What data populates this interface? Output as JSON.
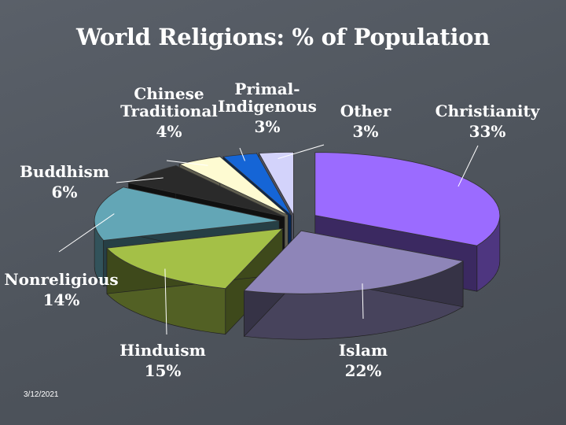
{
  "slide": {
    "title": "World Religions: % of Population",
    "footer_date": "3/12/2021"
  },
  "chart_data": {
    "type": "pie",
    "title": "World Religions: % of Population",
    "style": "3d-exploded",
    "unit": "%",
    "slices": [
      {
        "label": "Christianity",
        "value": 33,
        "value_label": "33%",
        "color": "#9b6bff"
      },
      {
        "label": "Islam",
        "value": 22,
        "value_label": "22%",
        "color": "#8e85b8"
      },
      {
        "label": "Hinduism",
        "value": 15,
        "value_label": "15%",
        "color": "#a4c047"
      },
      {
        "label": "Nonreligious",
        "value": 14,
        "value_label": "14%",
        "color": "#63a6b6"
      },
      {
        "label": "Buddhism",
        "value": 6,
        "value_label": "6%",
        "color": "#2a2a2a"
      },
      {
        "label": "Chinese Traditional",
        "value": 4,
        "value_label": "4%",
        "color": "#fefbd2"
      },
      {
        "label": "Primal-Indigenous",
        "value": 3,
        "value_label": "3%",
        "color": "#1565d6"
      },
      {
        "label": "Other",
        "value": 3,
        "value_label": "3%",
        "color": "#d3d3fb"
      }
    ]
  }
}
